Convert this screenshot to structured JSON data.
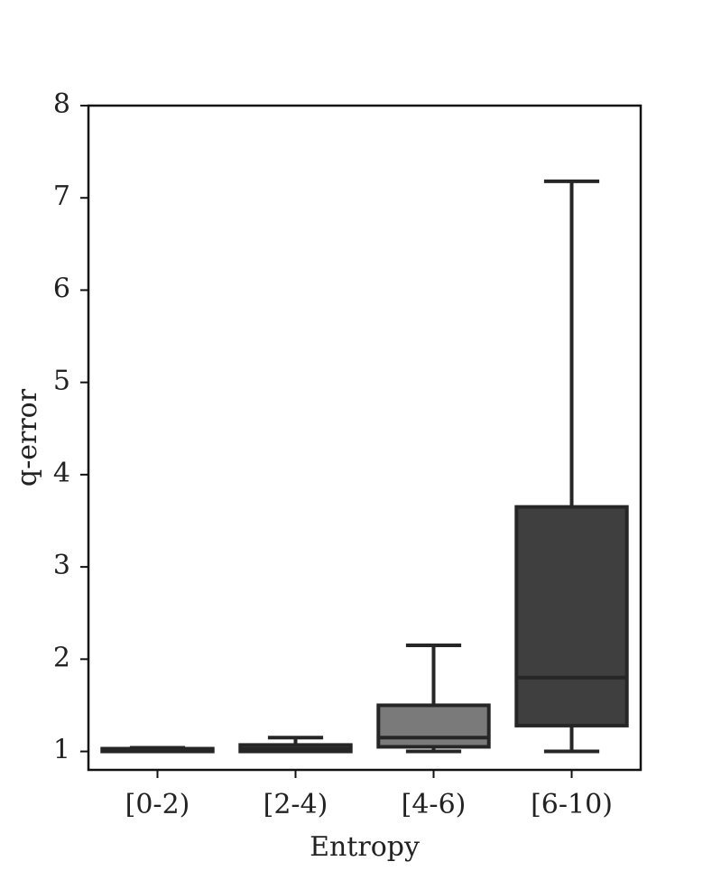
{
  "chart_data": {
    "type": "box",
    "title": "",
    "xlabel": "Entropy",
    "ylabel": "q-error",
    "ylim": [
      0.8,
      8.0
    ],
    "yticks": [
      1,
      2,
      3,
      4,
      5,
      6,
      7,
      8
    ],
    "grid": false,
    "legend": "none",
    "categories": [
      "[0-2)",
      "[2-4)",
      "[4-6)",
      "[6-10)"
    ],
    "boxes": [
      {
        "category": "[0-2)",
        "whisker_low": 1.0,
        "q1": 1.0,
        "median": 1.01,
        "q3": 1.03,
        "whisker_high": 1.04,
        "color": "#bfbfbf"
      },
      {
        "category": "[2-4)",
        "whisker_low": 1.0,
        "q1": 1.0,
        "median": 1.03,
        "q3": 1.07,
        "whisker_high": 1.15,
        "color": "#a5a5a5"
      },
      {
        "category": "[4-6)",
        "whisker_low": 1.0,
        "q1": 1.05,
        "median": 1.15,
        "q3": 1.5,
        "whisker_high": 2.15,
        "color": "#7a7a7a"
      },
      {
        "category": "[6-10)",
        "whisker_low": 1.0,
        "q1": 1.28,
        "median": 1.8,
        "q3": 3.65,
        "whisker_high": 7.18,
        "color": "#3f3f3f"
      }
    ],
    "colors": {
      "line": "#262626",
      "frame": "#111111"
    }
  }
}
